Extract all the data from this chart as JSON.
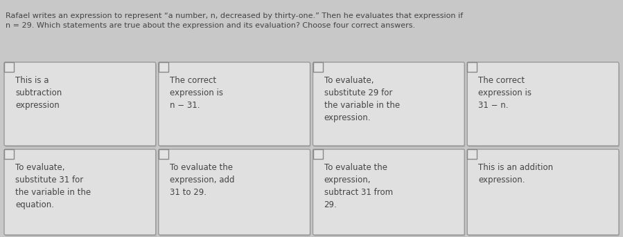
{
  "description": "Rafael writes an expression to represent “a number, n, decreased by thirty-one.” Then he evaluates that expression if\nn = 29. Which statements are true about the expression and its evaluation? Choose four correct answers.",
  "background_color": "#c8c8c8",
  "card_bg": "#e0e0e0",
  "card_border": "#999999",
  "checkbox_bg": "#e4e4e4",
  "checkbox_border": "#888888",
  "cards": [
    {
      "row": 0,
      "col": 0,
      "text": "This is a\nsubtraction\nexpression"
    },
    {
      "row": 0,
      "col": 1,
      "text": "The correct\nexpression is\nn − 31."
    },
    {
      "row": 0,
      "col": 2,
      "text": "To evaluate,\nsubstitute 29 for\nthe variable in the\nexpression."
    },
    {
      "row": 0,
      "col": 3,
      "text": "The correct\nexpression is\n31 − n."
    },
    {
      "row": 1,
      "col": 0,
      "text": "To evaluate,\nsubstitute 31 for\nthe variable in the\nequation."
    },
    {
      "row": 1,
      "col": 1,
      "text": "To evaluate the\nexpression, add\n31 to 29."
    },
    {
      "row": 1,
      "col": 2,
      "text": "To evaluate the\nexpression,\nsubtract 31 from\n29."
    },
    {
      "row": 1,
      "col": 3,
      "text": "This is an addition\nexpression."
    }
  ],
  "text_color": "#444444",
  "font_size": 8.5,
  "desc_font_size": 8.0,
  "card_text_ha": "left"
}
